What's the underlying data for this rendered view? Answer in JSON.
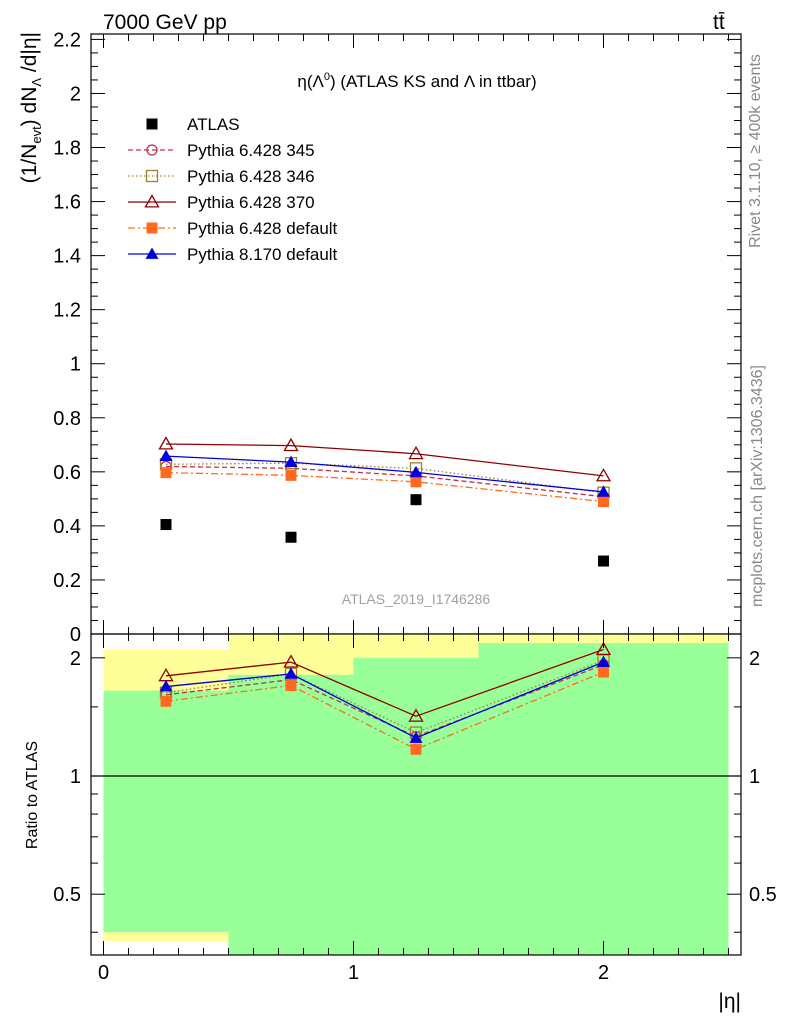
{
  "header": {
    "left": "7000 GeV pp",
    "right": "tt̄"
  },
  "side_labels": {
    "rivet": "Rivet 3.1.10, ≥ 400k events",
    "mcplots": "mcplots.cern.ch [arXiv:1306.3436]"
  },
  "chart_data": [
    {
      "type": "scatter",
      "title": "η(Λ0) (ATLAS KS and Λ in ttbar)",
      "title_parts": {
        "eta": "η(Λ",
        "sup": "0",
        "rest": ") (ATLAS KS and Λ in ttbar)"
      },
      "analysis_label": "ATLAS_2019_I1746286",
      "ylabel": "(1/Nevt) dNΛ/d|η|",
      "ylabel_parts": {
        "p1": "(1/N",
        "sub1": "evt",
        "p2": ") dN",
        "sub2": "Λ",
        "p3": " /d|η|"
      },
      "xlim": [
        -0.05,
        2.55
      ],
      "ylim": [
        0,
        2.22
      ],
      "yticks": [
        0,
        0.2,
        0.4,
        0.6,
        0.8,
        1,
        1.2,
        1.4,
        1.6,
        1.8,
        2,
        2.2
      ],
      "ytick_labels": [
        "0",
        "0.2",
        "0.4",
        "0.6",
        "0.8",
        "1",
        "1.2",
        "1.4",
        "1.6",
        "1.8",
        "2",
        "2.2"
      ],
      "x": [
        0.25,
        0.75,
        1.25,
        2.0
      ],
      "series": [
        {
          "name": "ATLAS",
          "color": "#000000",
          "marker": "square-filled",
          "dash": "none",
          "values": [
            0.405,
            0.358,
            0.497,
            0.27
          ]
        },
        {
          "name": "Pythia 6.428 345",
          "color": "#c03048",
          "marker": "circle-open",
          "dash": "5,3",
          "values": [
            0.62,
            0.613,
            0.585,
            0.508
          ]
        },
        {
          "name": "Pythia 6.428 346",
          "color": "#a08030",
          "marker": "square-open",
          "dash": "1.5,2.5",
          "values": [
            0.628,
            0.632,
            0.613,
            0.523
          ]
        },
        {
          "name": "Pythia 6.428 370",
          "color": "#900000",
          "marker": "triangle-open",
          "dash": "none",
          "values": [
            0.703,
            0.697,
            0.667,
            0.585
          ]
        },
        {
          "name": "Pythia 6.428 default",
          "color": "#ff6a20",
          "marker": "square-filled",
          "dash": "7,3,2,3",
          "values": [
            0.597,
            0.587,
            0.563,
            0.49
          ]
        },
        {
          "name": "Pythia 8.170 default",
          "color": "#0000dd",
          "marker": "triangle-filled",
          "dash": "none",
          "values": [
            0.658,
            0.636,
            0.598,
            0.526
          ]
        }
      ]
    },
    {
      "type": "line",
      "ylabel": "Ratio to ATLAS",
      "xlabel": "|η|",
      "xlim": [
        -0.05,
        2.55
      ],
      "ylim": [
        0.35,
        2.3
      ],
      "log_y": true,
      "xticks": [
        0,
        1,
        2
      ],
      "xtick_labels": [
        "0",
        "1",
        "2"
      ],
      "yticks": [
        0.5,
        1,
        2
      ],
      "ytick_labels": [
        "0.5",
        "1",
        "2"
      ],
      "reference_line": 1,
      "bands": [
        {
          "x0": 0.0,
          "x1": 0.5,
          "yellow": [
            0.38,
            2.1
          ],
          "green": [
            0.4,
            1.65
          ]
        },
        {
          "x0": 0.5,
          "x1": 1.0,
          "yellow": [
            0.33,
            2.45
          ],
          "green": [
            0.34,
            1.81
          ]
        },
        {
          "x0": 1.0,
          "x1": 1.5,
          "yellow": [
            0.33,
            2.45
          ],
          "green": [
            0.34,
            2.0
          ]
        },
        {
          "x0": 1.5,
          "x1": 2.5,
          "yellow": [
            0.33,
            2.45
          ],
          "green": [
            0.34,
            2.18
          ]
        }
      ],
      "x": [
        0.25,
        0.75,
        1.25,
        2.0
      ],
      "series": [
        {
          "name": "Pythia 6.428 345",
          "color": "#c03048",
          "marker": "circle-open",
          "dash": "5,3",
          "values": [
            1.61,
            1.76,
            1.26,
            1.92
          ]
        },
        {
          "name": "Pythia 6.428 346",
          "color": "#a08030",
          "marker": "square-open",
          "dash": "1.5,2.5",
          "values": [
            1.63,
            1.82,
            1.29,
            1.97
          ]
        },
        {
          "name": "Pythia 6.428 370",
          "color": "#900000",
          "marker": "triangle-open",
          "dash": "none",
          "values": [
            1.8,
            1.95,
            1.42,
            2.1
          ]
        },
        {
          "name": "Pythia 6.428 default",
          "color": "#ff6a20",
          "marker": "square-filled",
          "dash": "7,3,2,3",
          "values": [
            1.55,
            1.7,
            1.17,
            1.84
          ]
        },
        {
          "name": "Pythia 8.170 default",
          "color": "#0000dd",
          "marker": "triangle-filled",
          "dash": "none",
          "values": [
            1.69,
            1.82,
            1.25,
            1.95
          ]
        }
      ]
    }
  ]
}
